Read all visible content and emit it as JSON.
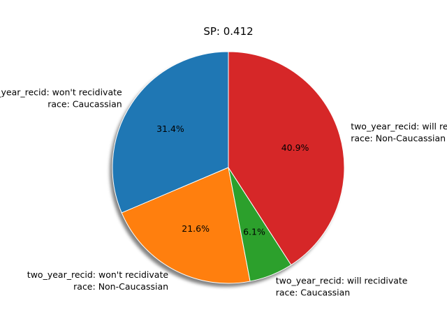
{
  "chart_data": {
    "type": "pie",
    "title": "SP: 0.412",
    "shadow": true,
    "start_angle_deg": 90,
    "direction": "counterclockwise",
    "slices": [
      {
        "line1": "two_year_recid: won't recidivate",
        "line2": "race: Caucassian",
        "value": 31.4,
        "pct_label": "31.4%",
        "color": "#1f77b4"
      },
      {
        "line1": "two_year_recid: won't recidivate",
        "line2": "race: Non-Caucassian",
        "value": 21.6,
        "pct_label": "21.6%",
        "color": "#ff7f0e"
      },
      {
        "line1": "two_year_recid: will recidivate",
        "line2": "race: Caucassian",
        "value": 6.1,
        "pct_label": "6.1%",
        "color": "#2ca02c"
      },
      {
        "line1": "two_year_recid: will recidivate",
        "line2": "race: Non-Caucassian",
        "value": 40.9,
        "pct_label": "40.9%",
        "color": "#d62728"
      }
    ]
  }
}
